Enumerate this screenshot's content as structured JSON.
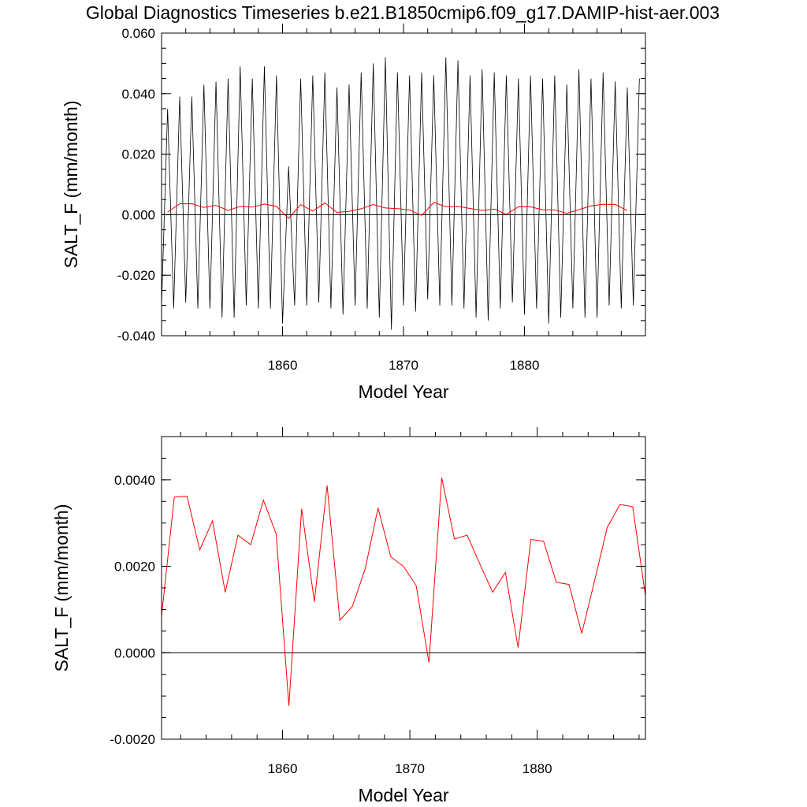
{
  "title": "Global Diagnostics Timeseries b.e21.B1850cmip6.f09_g17.DAMIP-hist-aer.003",
  "colors": {
    "monthly": "#000000",
    "annual": "#ff0000",
    "zero_line": "#000000"
  },
  "chart_data": [
    {
      "type": "line",
      "xlabel": "Model Year",
      "ylabel": "SALT_F (mm/month)",
      "xlim": [
        1850.0,
        1890.0
      ],
      "ylim": [
        -0.04,
        0.06
      ],
      "xticks": [
        "1860",
        "1870",
        "1880"
      ],
      "yticks": [
        "-0.040",
        "-0.020",
        "0.000",
        "0.020",
        "0.040",
        "0.060"
      ],
      "grid": false,
      "series": [
        {
          "key": "monthly",
          "x": [
            1850.0,
            1850.5,
            1851.0,
            1851.5,
            1852.0,
            1852.5,
            1853.0,
            1853.5,
            1854.0,
            1854.5,
            1855.0,
            1855.5,
            1856.0,
            1856.5,
            1857.0,
            1857.5,
            1858.0,
            1858.5,
            1859.0,
            1859.5,
            1860.0,
            1860.5,
            1861.0,
            1861.5,
            1862.0,
            1862.5,
            1863.0,
            1863.5,
            1864.0,
            1864.5,
            1865.0,
            1865.5,
            1866.0,
            1866.5,
            1867.0,
            1867.5,
            1868.0,
            1868.5,
            1869.0,
            1869.5,
            1870.0,
            1870.5,
            1871.0,
            1871.5,
            1872.0,
            1872.5,
            1873.0,
            1873.5,
            1874.0,
            1874.5,
            1875.0,
            1875.5,
            1876.0,
            1876.5,
            1877.0,
            1877.5,
            1878.0,
            1878.5,
            1879.0,
            1879.5,
            1880.0,
            1880.5,
            1881.0,
            1881.5,
            1882.0,
            1882.5,
            1883.0,
            1883.5,
            1884.0,
            1884.5,
            1885.0,
            1885.5,
            1886.0,
            1886.5,
            1887.0,
            1887.5,
            1888.0,
            1888.5,
            1889.0,
            1889.5
          ],
          "values": [
            -0.03,
            0.035,
            -0.031,
            0.039,
            -0.029,
            0.039,
            -0.031,
            0.043,
            -0.031,
            0.044,
            -0.034,
            0.045,
            -0.034,
            0.049,
            -0.03,
            0.045,
            -0.031,
            0.049,
            -0.031,
            0.046,
            -0.036,
            0.016,
            -0.03,
            0.045,
            -0.03,
            0.046,
            -0.029,
            0.047,
            -0.031,
            0.042,
            -0.033,
            0.043,
            -0.03,
            0.047,
            -0.031,
            0.05,
            -0.034,
            0.052,
            -0.038,
            0.047,
            -0.03,
            0.046,
            -0.032,
            0.047,
            -0.028,
            0.046,
            -0.03,
            0.052,
            -0.03,
            0.051,
            -0.031,
            0.046,
            -0.034,
            0.048,
            -0.035,
            0.047,
            -0.031,
            0.046,
            -0.029,
            0.045,
            -0.033,
            0.046,
            -0.031,
            0.045,
            -0.036,
            0.046,
            -0.034,
            0.043,
            -0.031,
            0.048,
            -0.034,
            0.045,
            -0.034,
            0.047,
            -0.03,
            0.044,
            -0.031,
            0.042,
            -0.03,
            0.045
          ]
        },
        {
          "key": "annual",
          "x": [
            1850.5,
            1851.5,
            1852.5,
            1853.5,
            1854.5,
            1855.5,
            1856.5,
            1857.5,
            1858.5,
            1859.5,
            1860.5,
            1861.5,
            1862.5,
            1863.5,
            1864.5,
            1865.5,
            1866.5,
            1867.5,
            1868.5,
            1869.5,
            1870.5,
            1871.5,
            1872.5,
            1873.5,
            1874.5,
            1875.5,
            1876.5,
            1877.5,
            1878.5,
            1879.5,
            1880.5,
            1881.5,
            1882.5,
            1883.5,
            1884.5,
            1885.5,
            1886.5,
            1887.5,
            1888.5
          ],
          "values": [
            0.00085,
            0.0036,
            0.00362,
            0.00238,
            0.00305,
            0.0014,
            0.00272,
            0.0025,
            0.00353,
            0.00275,
            -0.00123,
            0.00333,
            0.00118,
            0.00387,
            0.00075,
            0.00108,
            0.00195,
            0.00335,
            0.00222,
            0.002,
            0.00155,
            -0.00023,
            0.00405,
            0.00263,
            0.00272,
            0.00205,
            0.0014,
            0.00186,
            0.00012,
            0.00262,
            0.00258,
            0.00163,
            0.00158,
            0.00045,
            0.00166,
            0.0029,
            0.00343,
            0.00338,
            0.00132
          ]
        }
      ]
    },
    {
      "type": "line",
      "xlabel": "Model Year",
      "ylabel": "SALT_F (mm/month)",
      "xlim": [
        1850.5,
        1888.5
      ],
      "ylim": [
        -0.002,
        0.005
      ],
      "xticks": [
        "1860",
        "1870",
        "1880"
      ],
      "yticks": [
        "-0.0020",
        "0.0000",
        "0.0020",
        "0.0040"
      ],
      "grid": false,
      "series": [
        {
          "key": "annual",
          "x": [
            1850.5,
            1851.5,
            1852.5,
            1853.5,
            1854.5,
            1855.5,
            1856.5,
            1857.5,
            1858.5,
            1859.5,
            1860.5,
            1861.5,
            1862.5,
            1863.5,
            1864.5,
            1865.5,
            1866.5,
            1867.5,
            1868.5,
            1869.5,
            1870.5,
            1871.5,
            1872.5,
            1873.5,
            1874.5,
            1875.5,
            1876.5,
            1877.5,
            1878.5,
            1879.5,
            1880.5,
            1881.5,
            1882.5,
            1883.5,
            1884.5,
            1885.5,
            1886.5,
            1887.5,
            1888.5
          ],
          "values": [
            0.00085,
            0.0036,
            0.00362,
            0.00238,
            0.00305,
            0.0014,
            0.00272,
            0.0025,
            0.00353,
            0.00275,
            -0.00123,
            0.00333,
            0.00118,
            0.00387,
            0.00075,
            0.00108,
            0.00195,
            0.00335,
            0.00222,
            0.002,
            0.00155,
            -0.00023,
            0.00405,
            0.00263,
            0.00272,
            0.00205,
            0.0014,
            0.00186,
            0.00012,
            0.00262,
            0.00258,
            0.00163,
            0.00158,
            0.00045,
            0.00166,
            0.0029,
            0.00343,
            0.00338,
            0.00132
          ]
        }
      ]
    }
  ]
}
